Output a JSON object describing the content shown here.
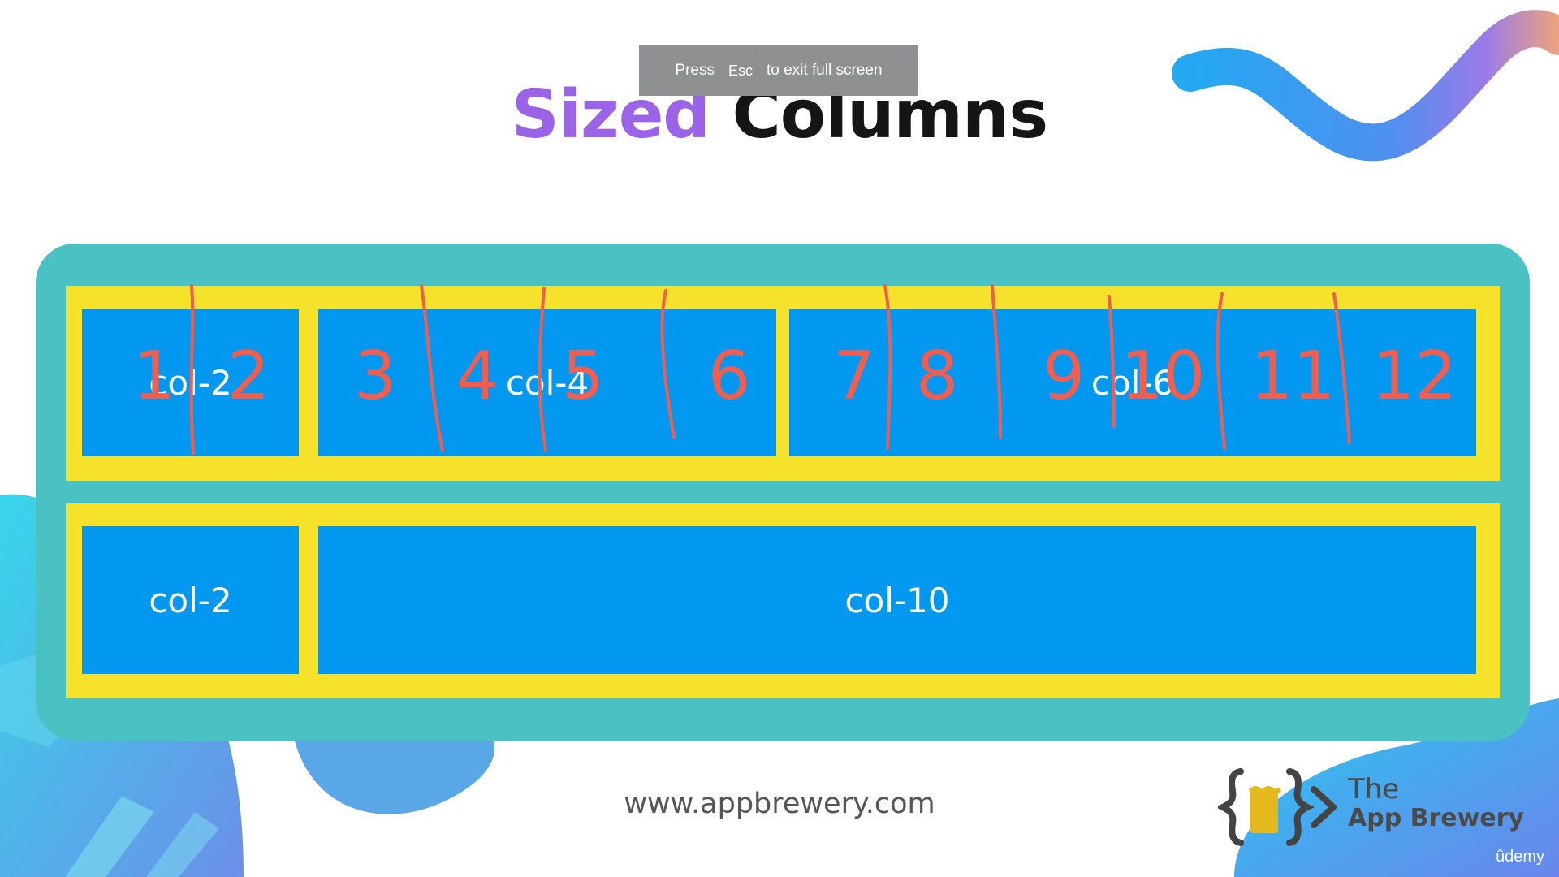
{
  "fullscreen_banner": {
    "press": "Press",
    "key": "Esc",
    "message": "to exit full screen"
  },
  "title": {
    "word1": "Sized",
    "word2": "Columns"
  },
  "rows": [
    {
      "columns": [
        {
          "label": "col-2",
          "span": 2
        },
        {
          "label": "col-4",
          "span": 4
        },
        {
          "label": "col-6",
          "span": 6
        }
      ]
    },
    {
      "columns": [
        {
          "label": "col-2",
          "span": 2
        },
        {
          "label": "col-10",
          "span": 10
        }
      ]
    }
  ],
  "annotation_numbers": [
    "1",
    "2",
    "3",
    "4",
    "5",
    "6",
    "7",
    "8",
    "9",
    "10",
    "11",
    "12"
  ],
  "website": "www.appbrewery.com",
  "logo": {
    "line1": "The",
    "line2": "App Brewery",
    "icon": "braces-beer-icon"
  },
  "watermark": "ûdemy",
  "colors": {
    "panel": "#4ac2c4",
    "row_bg": "#f6e22a",
    "column_bg": "#0398ef",
    "annotation": "#ef5e50",
    "title_accent": "#9a63e8"
  }
}
